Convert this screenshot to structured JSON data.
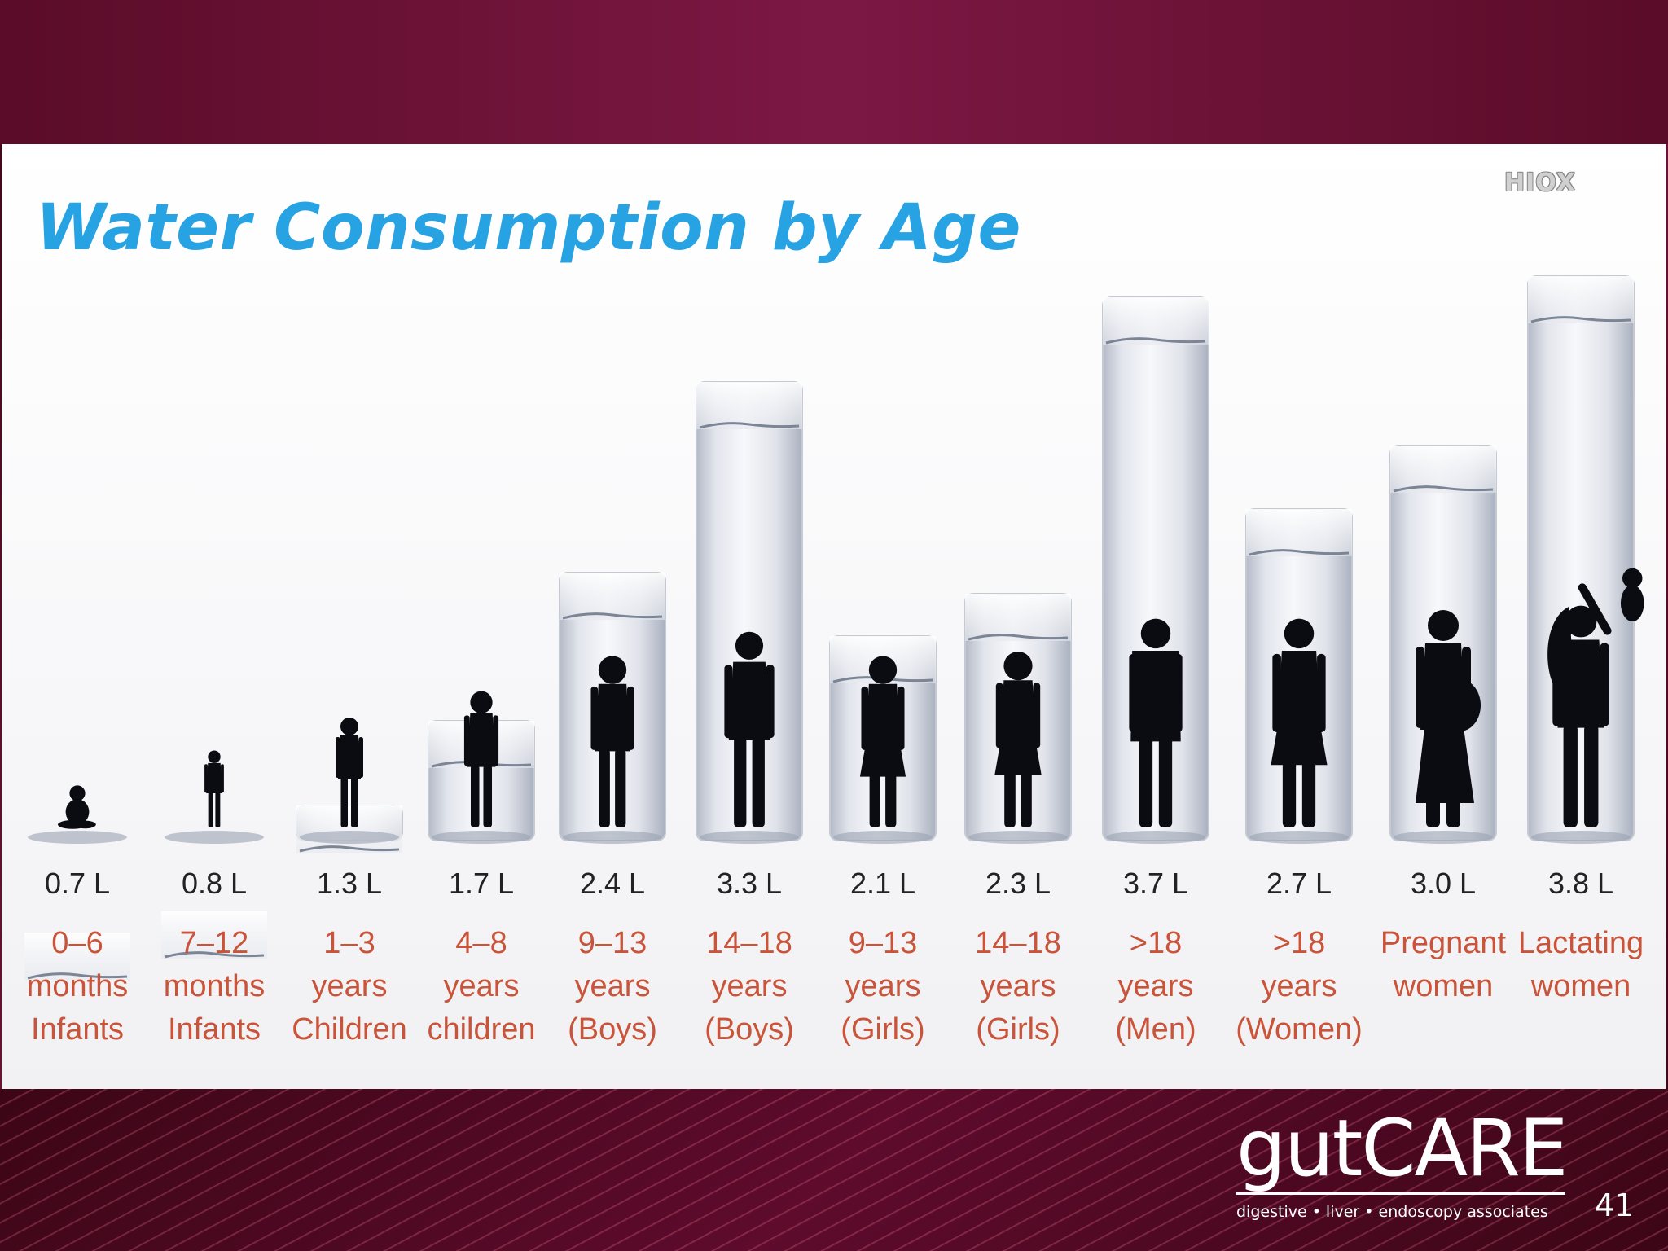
{
  "slide": {
    "watermark": "HIOX",
    "brand_name": "gutCARE",
    "brand_tagline": "digestive • liver • endoscopy associates",
    "page_number": "41"
  },
  "colors": {
    "title": "#27a3e3",
    "category_label": "#c9543a",
    "value_label": "#222222",
    "glass_dark": "#b4bac7",
    "glass_light": "#f4f5f8",
    "silhouette": "#0b0b12"
  },
  "chart_data": {
    "type": "bar",
    "title": "Water Consumption by Age",
    "xlabel": "",
    "ylabel": "",
    "ylim": [
      0,
      4
    ],
    "grid": false,
    "unit": "L",
    "categories": [
      [
        "0–6",
        "months",
        "Infants"
      ],
      [
        "7–12",
        "months",
        "Infants"
      ],
      [
        "1–3",
        "years",
        "Children"
      ],
      [
        "4–8",
        "years",
        "children"
      ],
      [
        "9–13",
        "years",
        "(Boys)"
      ],
      [
        "14–18",
        "years",
        "(Boys)"
      ],
      [
        "9–13",
        "years",
        "(Girls)"
      ],
      [
        "14–18",
        "years",
        "(Girls)"
      ],
      [
        ">18",
        "years",
        "(Men)"
      ],
      [
        ">18",
        "years",
        "(Women)"
      ],
      [
        "Pregnant",
        "women"
      ],
      [
        "Lactating",
        "women"
      ]
    ],
    "values": [
      0.7,
      0.8,
      1.3,
      1.7,
      2.4,
      3.3,
      2.1,
      2.3,
      3.7,
      2.7,
      3.0,
      3.8
    ],
    "value_labels": [
      "0.7 L",
      "0.8 L",
      "1.3 L",
      "1.7 L",
      "2.4 L",
      "3.3 L",
      "2.1 L",
      "2.3 L",
      "3.7 L",
      "2.7 L",
      "3.0 L",
      "3.8 L"
    ],
    "figures": [
      "seated-baby-icon",
      "toddler-icon",
      "small-child-icon",
      "child-icon",
      "boy-icon",
      "teen-boy-icon",
      "girl-icon",
      "teen-girl-icon",
      "man-icon",
      "woman-icon",
      "pregnant-woman-icon",
      "lactating-woman-icon"
    ]
  }
}
